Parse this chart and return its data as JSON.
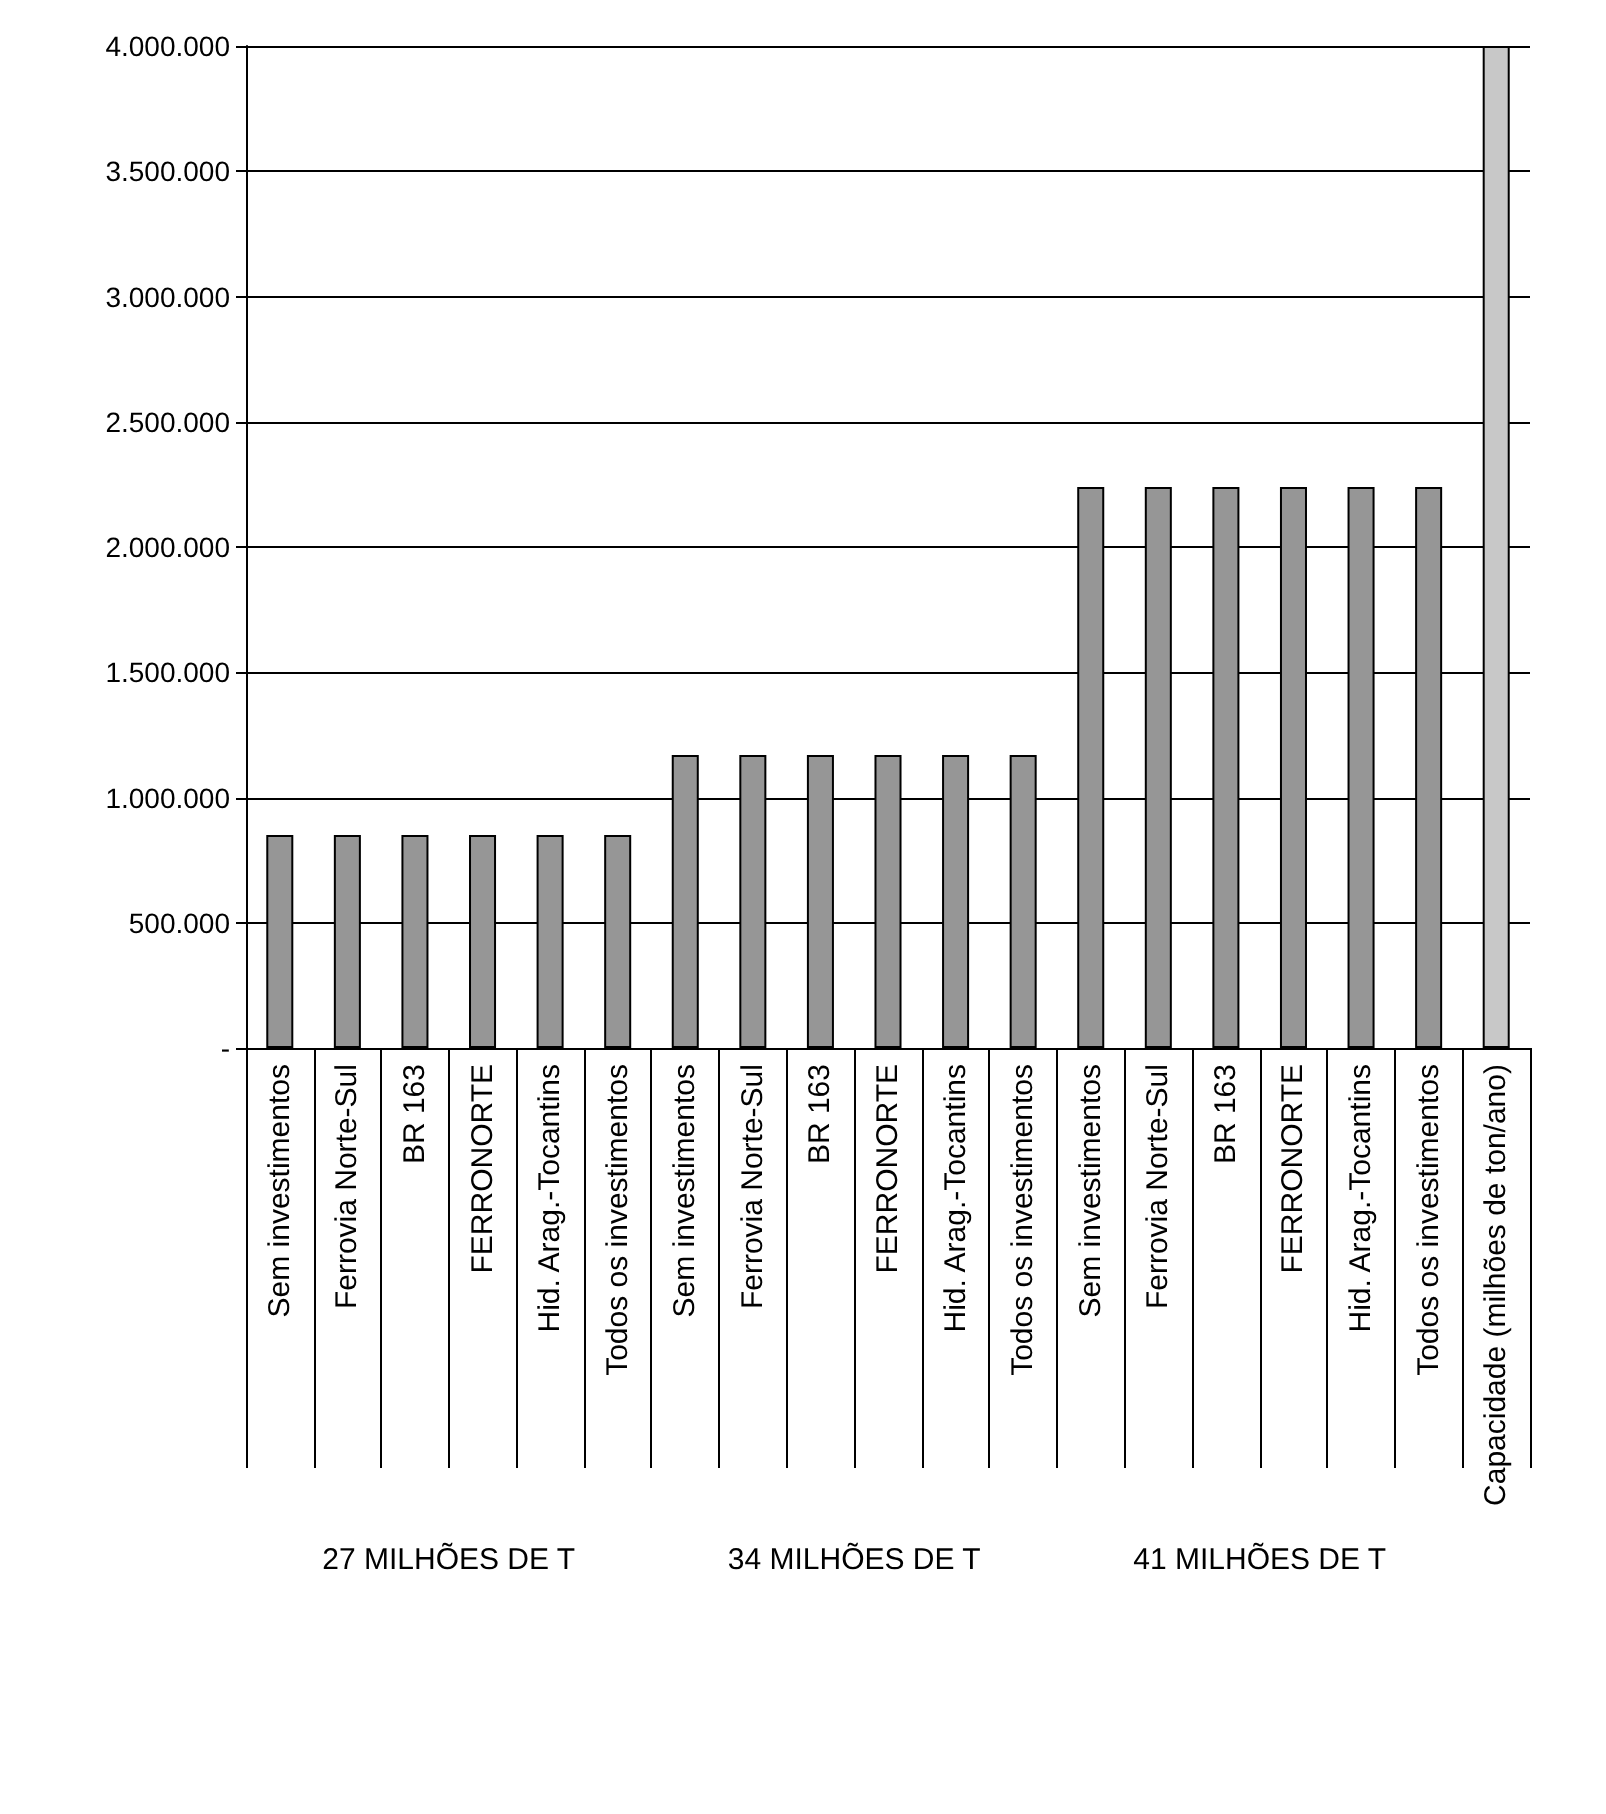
{
  "chart_data": {
    "type": "bar",
    "categories": [
      "Sem investimentos",
      "Ferrovia Norte-Sul",
      "BR 163",
      "FERRONORTE",
      "Hid. Arag.-Tocantins",
      "Todos os investimentos",
      "Sem investimentos",
      "Ferrovia Norte-Sul",
      "BR 163",
      "FERRONORTE",
      "Hid. Arag.-Tocantins",
      "Todos os investimentos",
      "Sem investimentos",
      "Ferrovia Norte-Sul",
      "BR 163",
      "FERRONORTE",
      "Hid. Arag.-Tocantins",
      "Todos os investimentos",
      "Capacidade (milhões de ton/ano)"
    ],
    "values": [
      850000,
      850000,
      850000,
      850000,
      850000,
      850000,
      1170000,
      1170000,
      1170000,
      1170000,
      1170000,
      1170000,
      2240000,
      2240000,
      2240000,
      2240000,
      2240000,
      2240000,
      4000000
    ],
    "colors": [
      "#969696",
      "#969696",
      "#969696",
      "#969696",
      "#969696",
      "#969696",
      "#969696",
      "#969696",
      "#969696",
      "#969696",
      "#969696",
      "#969696",
      "#969696",
      "#969696",
      "#969696",
      "#969696",
      "#969696",
      "#969696",
      "#c8c8c8"
    ],
    "ylim": [
      0,
      4000000
    ],
    "yticks": [
      {
        "value": 0,
        "label": "-"
      },
      {
        "value": 500000,
        "label": "500.000"
      },
      {
        "value": 1000000,
        "label": "1.000.000"
      },
      {
        "value": 1500000,
        "label": "1.500.000"
      },
      {
        "value": 2000000,
        "label": "2.000.000"
      },
      {
        "value": 2500000,
        "label": "2.500.000"
      },
      {
        "value": 3000000,
        "label": "3.000.000"
      },
      {
        "value": 3500000,
        "label": "3.500.000"
      },
      {
        "value": 4000000,
        "label": "4.000.000"
      }
    ],
    "grid": "y",
    "annotations": [
      "27 MILHÕES DE T",
      "34 MILHÕES DE T",
      "41 MILHÕES DE T"
    ]
  }
}
